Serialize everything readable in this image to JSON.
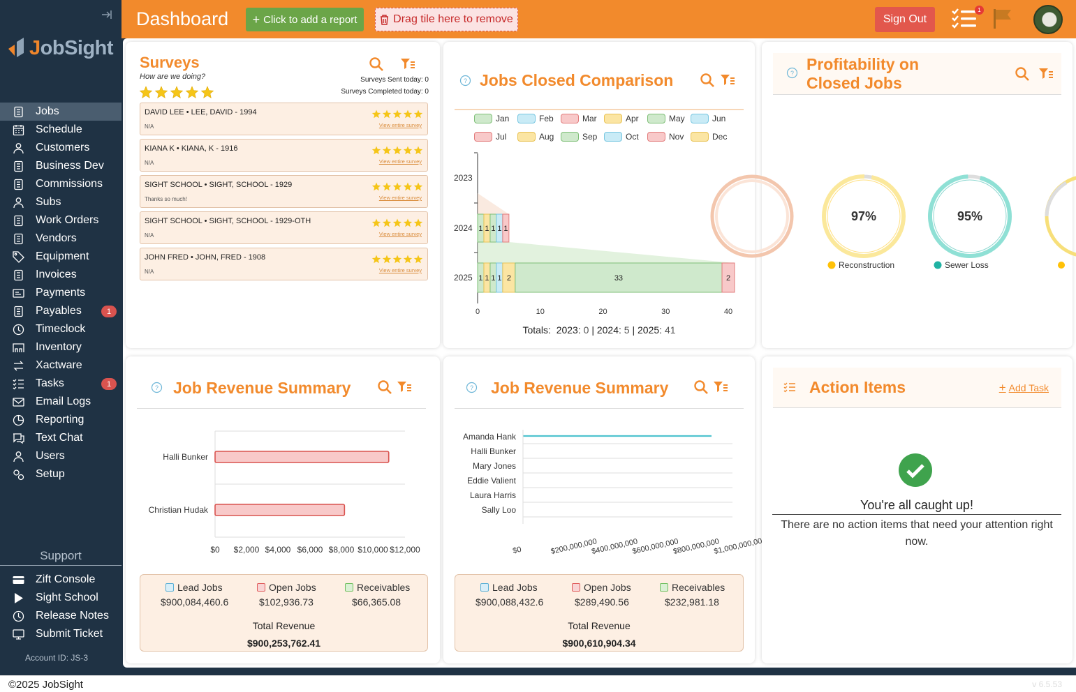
{
  "sidebar": {
    "logo": "JobSight",
    "items": [
      {
        "label": "Jobs",
        "icon": "clipboard-icon",
        "active": true
      },
      {
        "label": "Schedule",
        "icon": "calendar-icon"
      },
      {
        "label": "Customers",
        "icon": "customers-icon"
      },
      {
        "label": "Business Dev",
        "icon": "handshake-icon"
      },
      {
        "label": "Commissions",
        "icon": "commissions-icon"
      },
      {
        "label": "Subs",
        "icon": "user-icon"
      },
      {
        "label": "Work Orders",
        "icon": "work-orders-icon"
      },
      {
        "label": "Vendors",
        "icon": "vendors-icon"
      },
      {
        "label": "Equipment",
        "icon": "tag-icon"
      },
      {
        "label": "Invoices",
        "icon": "invoice-icon"
      },
      {
        "label": "Payments",
        "icon": "payments-icon"
      },
      {
        "label": "Payables",
        "icon": "payables-icon",
        "badge": "1"
      },
      {
        "label": "Timeclock",
        "icon": "clock-icon"
      },
      {
        "label": "Inventory",
        "icon": "inventory-icon"
      },
      {
        "label": "Xactware",
        "icon": "arrows-icon"
      },
      {
        "label": "Tasks",
        "icon": "tasks-icon",
        "badge": "1"
      },
      {
        "label": "Email Logs",
        "icon": "envelope-icon"
      },
      {
        "label": "Reporting",
        "icon": "pie-chart-icon"
      },
      {
        "label": "Text Chat",
        "icon": "chat-icon"
      },
      {
        "label": "Users",
        "icon": "users-icon"
      },
      {
        "label": "Setup",
        "icon": "gears-icon"
      }
    ],
    "support_title": "Support",
    "support_items": [
      {
        "label": "Zift Console",
        "icon": "credit-card-icon"
      },
      {
        "label": "Sight School",
        "icon": "play-icon"
      },
      {
        "label": "Release Notes",
        "icon": "history-icon"
      },
      {
        "label": "Submit Ticket",
        "icon": "monitor-icon"
      }
    ],
    "account": "Account ID:  JS-3"
  },
  "header": {
    "title": "Dashboard",
    "add_report": "Click to add a report",
    "drop_zone": "Drag tile here to remove",
    "sign_out": "Sign Out",
    "tasks_badge": "1"
  },
  "surveys": {
    "title": "Surveys",
    "subtitle": "How are we doing?",
    "sent_today": "Surveys Sent today: 0",
    "completed_today": "Surveys Completed today: 0",
    "link": "View entire survey",
    "rows": [
      {
        "name": "DAVID LEE • LEE, DAVID - 1994",
        "note": "N/A",
        "stars": 5
      },
      {
        "name": "KIANA K • KIANA, K - 1916",
        "note": "N/A",
        "stars": 5
      },
      {
        "name": "SIGHT SCHOOL • SIGHT, SCHOOL - 1929",
        "note": "Thanks so much!",
        "stars": 5
      },
      {
        "name": "SIGHT SCHOOL • SIGHT, SCHOOL - 1929-OTH",
        "note": "N/A",
        "stars": 5
      },
      {
        "name": "JOHN FRED • JOHN, FRED - 1908",
        "note": "N/A",
        "stars": 5
      }
    ]
  },
  "jobs_closed": {
    "title": "Jobs Closed Comparison",
    "totals_label": "Totals:",
    "totals": [
      {
        "year": "2023:",
        "value": "0"
      },
      {
        "year": "2024:",
        "value": "5"
      },
      {
        "year": "2025:",
        "value": "41"
      }
    ]
  },
  "profitability": {
    "title_line1": "Profitability on",
    "title_line2": "Closed Jobs",
    "items": [
      {
        "label": "Reconstruction",
        "value": "97%",
        "color": "#ffc107",
        "fill": "#fbe89b",
        "pct": 97
      },
      {
        "label": "Sewer Loss",
        "value": "95%",
        "color": "#20b2a3",
        "fill": "#8fe0d5",
        "pct": 95
      }
    ]
  },
  "revenue1": {
    "title": "Job Revenue Summary",
    "lead_label": "Lead Jobs",
    "lead": "$900,084,460.6",
    "open_label": "Open Jobs",
    "open": "$102,936.73",
    "recv_label": "Receivables",
    "recv": "$66,365.08",
    "total_label": "Total Revenue",
    "total": "$900,253,762.41"
  },
  "revenue2": {
    "title": "Job Revenue Summary",
    "lead_label": "Lead Jobs",
    "lead": "$900,088,432.6",
    "open_label": "Open Jobs",
    "open": "$289,490.56",
    "recv_label": "Receivables",
    "recv": "$232,981.18",
    "total_label": "Total Revenue",
    "total": "$900,610,904.34"
  },
  "action_items": {
    "title": "Action Items",
    "add_task": "Add Task",
    "caught_up": "You're all caught up!",
    "message": "There are no action items that need your attention right now."
  },
  "footer": {
    "copyright": "©2025 JobSight",
    "version": "v 6.5.53"
  },
  "chart_data": [
    {
      "type": "bar",
      "orientation": "horizontal-stacked",
      "categories": [
        "2023",
        "2024",
        "2025"
      ],
      "series": [
        {
          "name": "Jan",
          "color": "#cfe9cc",
          "stroke": "#7fbf77",
          "values": [
            0,
            1,
            1
          ]
        },
        {
          "name": "Feb",
          "color": "#fbe5a3",
          "stroke": "#e8c254",
          "values": [
            0,
            1,
            1
          ]
        },
        {
          "name": "Mar",
          "color": "#cfe9cc",
          "stroke": "#7fbf77",
          "values": [
            0,
            1,
            1
          ]
        },
        {
          "name": "Apr",
          "color": "#c9ebf6",
          "stroke": "#77c6e0",
          "values": [
            0,
            1,
            1
          ]
        },
        {
          "name": "May",
          "color": "#f8c9c9",
          "stroke": "#e27c7c",
          "values": [
            0,
            1,
            0
          ]
        },
        {
          "name": "Jun",
          "color": "#fbe5a3",
          "stroke": "#e8c254",
          "values": [
            0,
            0,
            2
          ]
        },
        {
          "name": "Jul",
          "color": "#cfe9cc",
          "stroke": "#7fbf77",
          "values": [
            0,
            0,
            33
          ]
        },
        {
          "name": "Aug",
          "color": "#f8c9c9",
          "stroke": "#e27c7c",
          "values": [
            0,
            0,
            2
          ]
        }
      ],
      "legend": [
        "Jan",
        "Feb",
        "Mar",
        "Apr",
        "May",
        "Jun",
        "Jul",
        "Aug",
        "Sep",
        "Oct",
        "Nov",
        "Dec"
      ],
      "legend_colors": [
        "#7fbf77",
        "#77c6e0",
        "#e27c7c",
        "#e8c254",
        "#7fbf77",
        "#77c6e0",
        "#e27c7c",
        "#e8c254",
        "#7fbf77",
        "#77c6e0",
        "#e27c7c",
        "#e8c254"
      ],
      "x_ticks": [
        "0",
        "10",
        "20",
        "30",
        "40"
      ],
      "xlim": [
        0,
        41
      ]
    },
    {
      "type": "bar",
      "orientation": "horizontal",
      "categories": [
        "Halli Bunker",
        "Christian Hudak"
      ],
      "values": [
        10400,
        7750
      ],
      "x_ticks": [
        "$0",
        "$2,000",
        "$4,000",
        "$6,000",
        "$8,000",
        "$10,000",
        "$12,000"
      ],
      "xlim": [
        0,
        12000
      ]
    },
    {
      "type": "bar",
      "orientation": "horizontal",
      "categories": [
        "Amanda Hank",
        "Halli Bunker",
        "Mary Jones",
        "Eddie Valient",
        "Laura Harris",
        "Sally Loo"
      ],
      "values": [
        900000000,
        0,
        0,
        0,
        0,
        0
      ],
      "x_ticks": [
        "$0",
        "$200,000,000",
        "$400,000,000",
        "$600,000,000",
        "$800,000,000",
        "$1,000,000,000"
      ],
      "xlim": [
        0,
        1000000000
      ]
    }
  ]
}
